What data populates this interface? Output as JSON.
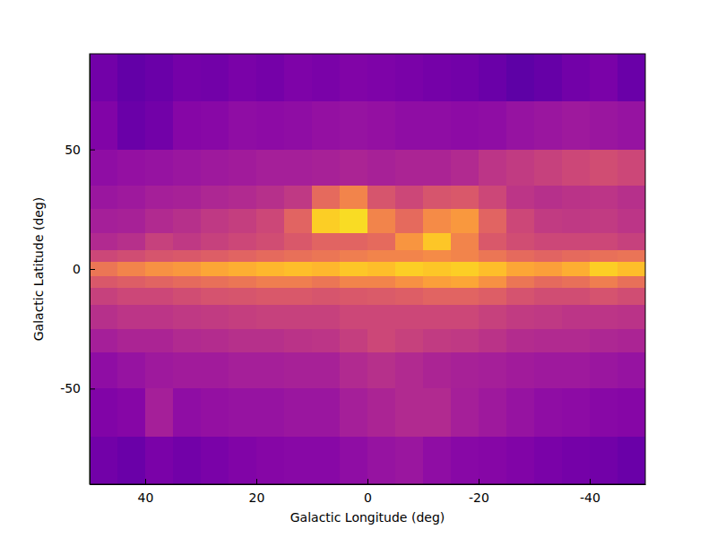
{
  "chart_data": {
    "type": "heatmap",
    "xlabel": "Galactic Longitude (deg)",
    "ylabel": "Galactic Latitude (deg)",
    "xlim": [
      50,
      -50
    ],
    "ylim": [
      -90,
      90
    ],
    "xticks": [
      40,
      20,
      0,
      -20,
      -40
    ],
    "yticks": [
      -50,
      0,
      50
    ],
    "color": "plasma",
    "zlim": [
      0,
      1
    ],
    "x_edges": [
      50,
      45,
      40,
      35,
      30,
      25,
      20,
      15,
      10,
      5,
      0,
      -5,
      -10,
      -15,
      -20,
      -25,
      -30,
      -35,
      -40,
      -45,
      -50
    ],
    "y_edges": [
      90,
      70,
      50,
      35,
      25,
      15,
      8,
      3,
      -3,
      -8,
      -15,
      -25,
      -35,
      -50,
      -70,
      -90
    ],
    "z": [
      [
        0.22,
        0.18,
        0.2,
        0.23,
        0.22,
        0.24,
        0.23,
        0.25,
        0.24,
        0.26,
        0.25,
        0.24,
        0.23,
        0.22,
        0.2,
        0.17,
        0.19,
        0.22,
        0.24,
        0.2
      ],
      [
        0.26,
        0.2,
        0.22,
        0.27,
        0.28,
        0.3,
        0.29,
        0.3,
        0.31,
        0.32,
        0.31,
        0.3,
        0.3,
        0.29,
        0.3,
        0.32,
        0.33,
        0.34,
        0.33,
        0.32
      ],
      [
        0.3,
        0.31,
        0.32,
        0.33,
        0.34,
        0.35,
        0.36,
        0.36,
        0.37,
        0.38,
        0.37,
        0.38,
        0.38,
        0.4,
        0.44,
        0.46,
        0.48,
        0.5,
        0.52,
        0.5
      ],
      [
        0.33,
        0.34,
        0.36,
        0.37,
        0.39,
        0.4,
        0.42,
        0.45,
        0.62,
        0.7,
        0.55,
        0.5,
        0.55,
        0.56,
        0.5,
        0.44,
        0.42,
        0.43,
        0.44,
        0.42
      ],
      [
        0.36,
        0.37,
        0.4,
        0.42,
        0.45,
        0.47,
        0.5,
        0.6,
        0.9,
        0.93,
        0.7,
        0.62,
        0.72,
        0.76,
        0.6,
        0.5,
        0.46,
        0.45,
        0.46,
        0.44
      ],
      [
        0.4,
        0.42,
        0.48,
        0.45,
        0.48,
        0.5,
        0.52,
        0.56,
        0.6,
        0.6,
        0.62,
        0.75,
        0.88,
        0.7,
        0.56,
        0.52,
        0.5,
        0.5,
        0.5,
        0.48
      ],
      [
        0.5,
        0.52,
        0.55,
        0.56,
        0.58,
        0.6,
        0.62,
        0.64,
        0.66,
        0.68,
        0.7,
        0.7,
        0.72,
        0.7,
        0.66,
        0.62,
        0.6,
        0.62,
        0.64,
        0.65
      ],
      [
        0.66,
        0.7,
        0.74,
        0.76,
        0.8,
        0.82,
        0.84,
        0.86,
        0.84,
        0.88,
        0.86,
        0.9,
        0.88,
        0.9,
        0.86,
        0.8,
        0.78,
        0.82,
        0.9,
        0.86
      ],
      [
        0.56,
        0.58,
        0.6,
        0.62,
        0.64,
        0.66,
        0.68,
        0.68,
        0.66,
        0.7,
        0.7,
        0.74,
        0.78,
        0.8,
        0.74,
        0.66,
        0.62,
        0.64,
        0.68,
        0.64
      ],
      [
        0.48,
        0.5,
        0.5,
        0.52,
        0.54,
        0.55,
        0.56,
        0.56,
        0.55,
        0.56,
        0.57,
        0.58,
        0.6,
        0.6,
        0.58,
        0.54,
        0.52,
        0.52,
        0.54,
        0.52
      ],
      [
        0.42,
        0.44,
        0.44,
        0.45,
        0.46,
        0.47,
        0.48,
        0.48,
        0.48,
        0.5,
        0.5,
        0.5,
        0.5,
        0.5,
        0.48,
        0.46,
        0.45,
        0.44,
        0.44,
        0.43
      ],
      [
        0.36,
        0.38,
        0.38,
        0.4,
        0.41,
        0.42,
        0.42,
        0.43,
        0.44,
        0.47,
        0.5,
        0.48,
        0.46,
        0.45,
        0.43,
        0.41,
        0.4,
        0.4,
        0.39,
        0.38
      ],
      [
        0.3,
        0.32,
        0.34,
        0.35,
        0.35,
        0.36,
        0.36,
        0.37,
        0.37,
        0.4,
        0.42,
        0.4,
        0.38,
        0.37,
        0.36,
        0.35,
        0.34,
        0.34,
        0.33,
        0.32
      ],
      [
        0.26,
        0.27,
        0.36,
        0.3,
        0.31,
        0.32,
        0.32,
        0.33,
        0.33,
        0.36,
        0.38,
        0.4,
        0.4,
        0.36,
        0.34,
        0.32,
        0.3,
        0.29,
        0.28,
        0.27
      ],
      [
        0.22,
        0.2,
        0.24,
        0.22,
        0.24,
        0.26,
        0.27,
        0.28,
        0.28,
        0.3,
        0.32,
        0.33,
        0.3,
        0.28,
        0.27,
        0.26,
        0.24,
        0.23,
        0.22,
        0.2
      ]
    ]
  }
}
